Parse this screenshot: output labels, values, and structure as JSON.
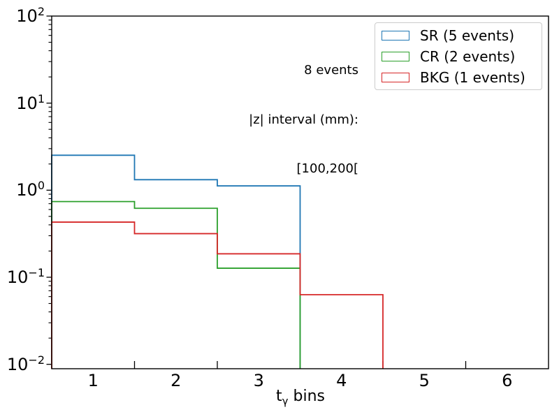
{
  "chart_data": {
    "type": "line",
    "style": "step-histogram",
    "title": "",
    "xlabel_parts": {
      "main": "t",
      "sub": "γ",
      "rest": " bins"
    },
    "ylabel": "",
    "bin_edges": [
      0.5,
      1.5,
      2.5,
      3.5,
      4.5,
      5.5,
      6.5
    ],
    "series": [
      {
        "name": "SR (5 events)",
        "color": "#1f77b4",
        "values": [
          2.52,
          1.32,
          1.12,
          0,
          0,
          0
        ]
      },
      {
        "name": "CR (2 events)",
        "color": "#2ca02c",
        "values": [
          0.74,
          0.62,
          0.127,
          0,
          0,
          0
        ]
      },
      {
        "name": "BKG (1 events)",
        "color": "#d62728",
        "values": [
          0.43,
          0.317,
          0.186,
          0.063,
          0,
          0
        ]
      }
    ],
    "xlim": [
      0.5,
      6.5
    ],
    "ylim": [
      0.0089,
      100
    ],
    "yscale": "log",
    "xtick_positions": [
      1,
      2,
      3,
      4,
      5,
      6
    ],
    "xtick_labels": [
      "1",
      "2",
      "3",
      "4",
      "5",
      "6"
    ],
    "x_binedge_ticks": [
      1.5,
      2.5,
      3.5,
      4.5,
      5.5
    ],
    "ytick_positions": [
      100,
      10,
      1,
      0.1,
      0.01
    ],
    "ytick_exponents": [
      "2",
      "1",
      "0",
      "−1",
      "−2"
    ],
    "ytick_base": "10",
    "grid": false,
    "legend_position": "upper right",
    "annotation_lines": [
      "8 events",
      "|z| interval (mm):",
      "[100,200["
    ],
    "frame_color": "#000000",
    "legend_border_color": "#cccccc"
  }
}
